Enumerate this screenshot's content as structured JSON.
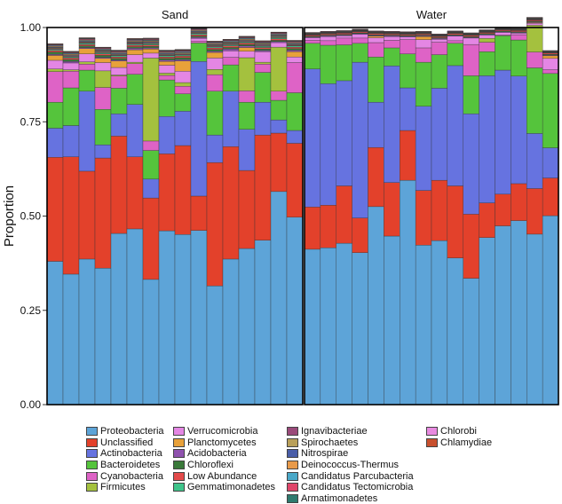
{
  "chart_data": {
    "type": "bar",
    "stacked": true,
    "ylabel": "Proportion",
    "xlabel": "",
    "ylim": [
      0,
      1
    ],
    "yticks": [
      "0.00",
      "0.25",
      "0.50",
      "0.75",
      "1.00"
    ],
    "panels": [
      "Sand",
      "Water"
    ],
    "series": [
      {
        "name": "Proteobacteria",
        "color": "#5da4d8",
        "sand": [
          0.38,
          0.346,
          0.386,
          0.362,
          0.454,
          0.466,
          0.332,
          0.461,
          0.451,
          0.462,
          0.315,
          0.386,
          0.414,
          0.436,
          0.565,
          0.497
        ],
        "water": [
          0.412,
          0.416,
          0.428,
          0.403,
          0.525,
          0.447,
          0.595,
          0.423,
          0.435,
          0.389,
          0.335,
          0.443,
          0.474,
          0.488,
          0.452,
          0.501
        ]
      },
      {
        "name": "Unclassified",
        "color": "#e3412b",
        "sand": [
          0.276,
          0.311,
          0.233,
          0.292,
          0.258,
          0.191,
          0.216,
          0.204,
          0.236,
          0.091,
          0.327,
          0.298,
          0.207,
          0.279,
          0.155,
          0.196
        ],
        "water": [
          0.112,
          0.113,
          0.152,
          0.092,
          0.157,
          0.142,
          0.132,
          0.145,
          0.16,
          0.191,
          0.17,
          0.092,
          0.084,
          0.098,
          0.121,
          0.1
        ]
      },
      {
        "name": "Actinobacteria",
        "color": "#6673e0",
        "sand": [
          0.077,
          0.083,
          0.212,
          0.035,
          0.059,
          0.139,
          0.05,
          0.099,
          0.091,
          0.357,
          0.073,
          0.147,
          0.109,
          0.087,
          0.035,
          0.034
        ],
        "water": [
          0.366,
          0.322,
          0.279,
          0.413,
          0.12,
          0.309,
          0.113,
          0.223,
          0.244,
          0.319,
          0.266,
          0.337,
          0.329,
          0.285,
          0.146,
          0.08
        ]
      },
      {
        "name": "Bacteroidetes",
        "color": "#55c43c",
        "sand": [
          0.069,
          0.1,
          0.056,
          0.094,
          0.068,
          0.08,
          0.076,
          0.097,
          0.046,
          0.049,
          0.116,
          0.07,
          0.072,
          0.079,
          0.052,
          0.1
        ],
        "water": [
          0.068,
          0.102,
          0.095,
          0.05,
          0.12,
          0.048,
          0.09,
          0.117,
          0.089,
          0.059,
          0.101,
          0.064,
          0.091,
          0.096,
          0.174,
          0.197
        ]
      },
      {
        "name": "Cyanobacteria",
        "color": "#de63c6",
        "sand": [
          0.081,
          0.044,
          0.016,
          0.058,
          0.032,
          0.028,
          0.025,
          0.012,
          0.02,
          0.005,
          0.044,
          0.02,
          0.03,
          0.022,
          0.024,
          0.08
        ],
        "water": [
          0.008,
          0.012,
          0.018,
          0.014,
          0.038,
          0.02,
          0.038,
          0.038,
          0.033,
          0.007,
          0.083,
          0.025,
          0.002,
          0.014,
          0.042,
          0.01
        ]
      },
      {
        "name": "Firmicutes",
        "color": "#a4c13e",
        "sand": [
          0.007,
          0.004,
          0.006,
          0.044,
          0.003,
          0.004,
          0.22,
          0.006,
          0.01,
          0.0,
          0.014,
          0.0,
          0.088,
          0.005,
          0.117,
          0.0
        ],
        "water": [
          0.0,
          0.0,
          0.0,
          0.0,
          0.0,
          0.0,
          0.0,
          0.0,
          0.0,
          0.0,
          0.0,
          0.01,
          0.0,
          0.0,
          0.071,
          0.0
        ]
      },
      {
        "name": "Verrucomicrobia",
        "color": "#e486e4",
        "sand": [
          0.023,
          0.018,
          0.021,
          0.022,
          0.02,
          0.02,
          0.013,
          0.021,
          0.03,
          0.007,
          0.03,
          0.017,
          0.017,
          0.028,
          0.012,
          0.015
        ],
        "water": [
          0.007,
          0.011,
          0.006,
          0.01,
          0.013,
          0.01,
          0.007,
          0.022,
          0.008,
          0.012,
          0.017,
          0.009,
          0.007,
          0.004,
          0.005,
          0.03
        ]
      },
      {
        "name": "Planctomycetes",
        "color": "#e8a13a",
        "sand": [
          0.013,
          0.0,
          0.014,
          0.011,
          0.017,
          0.013,
          0.011,
          0.01,
          0.027,
          0.0,
          0.015,
          0.0,
          0.01,
          0.0,
          0.0,
          0.014
        ],
        "water": [
          0.0,
          0.0,
          0.0,
          0.0,
          0.004,
          0.0,
          0.0,
          0.008,
          0.0,
          0.0,
          0.0,
          0.0,
          0.0,
          0.0,
          0.002,
          0.007
        ]
      },
      {
        "name": "Acidobacteria",
        "color": "#8f52ae",
        "sand": [
          0.003,
          0.004,
          0.003,
          0.003,
          0.003,
          0.004,
          0.003,
          0.004,
          0.004,
          0.003,
          0.003,
          0.005,
          0.004,
          0.003,
          0.003,
          0.004
        ],
        "water": [
          0.002,
          0.002,
          0.002,
          0.002,
          0.002,
          0.002,
          0.002,
          0.002,
          0.002,
          0.002,
          0.002,
          0.002,
          0.002,
          0.002,
          0.002,
          0.002
        ]
      },
      {
        "name": "Chloroflexi",
        "color": "#3a7a3a",
        "sand": [
          0.006,
          0.005,
          0.004,
          0.005,
          0.004,
          0.004,
          0.004,
          0.004,
          0.005,
          0.003,
          0.005,
          0.004,
          0.004,
          0.004,
          0.003,
          0.004
        ],
        "water": [
          0.002,
          0.002,
          0.002,
          0.002,
          0.002,
          0.002,
          0.002,
          0.002,
          0.002,
          0.002,
          0.002,
          0.002,
          0.002,
          0.002,
          0.002,
          0.002
        ]
      },
      {
        "name": "Low Abundance",
        "color": "#e34a4a",
        "sand": [
          0.004,
          0.004,
          0.004,
          0.004,
          0.004,
          0.004,
          0.004,
          0.004,
          0.004,
          0.004,
          0.004,
          0.004,
          0.004,
          0.004,
          0.004,
          0.004
        ],
        "water": [
          0.003,
          0.003,
          0.003,
          0.003,
          0.003,
          0.003,
          0.003,
          0.003,
          0.003,
          0.003,
          0.003,
          0.003,
          0.003,
          0.003,
          0.003,
          0.003
        ]
      },
      {
        "name": "Gemmatimonadetes",
        "color": "#3ec48a",
        "sand": [
          0.003,
          0.003,
          0.003,
          0.003,
          0.003,
          0.003,
          0.003,
          0.003,
          0.003,
          0.003,
          0.003,
          0.003,
          0.003,
          0.003,
          0.003,
          0.003
        ],
        "water": [
          0.001,
          0.001,
          0.001,
          0.001,
          0.001,
          0.001,
          0.001,
          0.001,
          0.001,
          0.001,
          0.001,
          0.001,
          0.001,
          0.001,
          0.001,
          0.001
        ]
      },
      {
        "name": "Ignavibacteriae",
        "color": "#9a4a7a",
        "sand": [
          0.002,
          0.002,
          0.002,
          0.002,
          0.002,
          0.002,
          0.002,
          0.002,
          0.002,
          0.002,
          0.002,
          0.002,
          0.002,
          0.002,
          0.002,
          0.002
        ],
        "water": [
          0.001,
          0.001,
          0.001,
          0.001,
          0.001,
          0.001,
          0.001,
          0.001,
          0.001,
          0.001,
          0.001,
          0.001,
          0.001,
          0.001,
          0.001,
          0.001
        ]
      },
      {
        "name": "Spirochaetes",
        "color": "#b9a05a",
        "sand": [
          0.002,
          0.002,
          0.002,
          0.002,
          0.002,
          0.002,
          0.002,
          0.002,
          0.002,
          0.002,
          0.002,
          0.002,
          0.002,
          0.002,
          0.002,
          0.002
        ],
        "water": [
          0.001,
          0.001,
          0.001,
          0.001,
          0.001,
          0.001,
          0.001,
          0.001,
          0.001,
          0.001,
          0.001,
          0.001,
          0.001,
          0.001,
          0.001,
          0.001
        ]
      },
      {
        "name": "Nitrospirae",
        "color": "#4a5ea8",
        "sand": [
          0.002,
          0.002,
          0.002,
          0.002,
          0.002,
          0.002,
          0.002,
          0.002,
          0.002,
          0.002,
          0.002,
          0.002,
          0.002,
          0.002,
          0.002,
          0.002
        ],
        "water": [
          0.001,
          0.001,
          0.001,
          0.001,
          0.001,
          0.001,
          0.001,
          0.001,
          0.001,
          0.001,
          0.001,
          0.001,
          0.001,
          0.001,
          0.001,
          0.001
        ]
      },
      {
        "name": "Deinococcus-Thermus",
        "color": "#e89a4a",
        "sand": [
          0.002,
          0.002,
          0.002,
          0.002,
          0.002,
          0.002,
          0.002,
          0.002,
          0.002,
          0.002,
          0.002,
          0.002,
          0.002,
          0.002,
          0.002,
          0.002
        ],
        "water": [
          0.001,
          0.001,
          0.001,
          0.001,
          0.001,
          0.001,
          0.001,
          0.001,
          0.001,
          0.001,
          0.001,
          0.001,
          0.001,
          0.001,
          0.001,
          0.001
        ]
      },
      {
        "name": "Candidatus Parcubacteria",
        "color": "#4aa8c8",
        "sand": [
          0.002,
          0.002,
          0.002,
          0.002,
          0.002,
          0.002,
          0.002,
          0.002,
          0.002,
          0.002,
          0.002,
          0.002,
          0.002,
          0.002,
          0.002,
          0.002
        ],
        "water": [
          0.001,
          0.001,
          0.001,
          0.001,
          0.001,
          0.001,
          0.001,
          0.001,
          0.001,
          0.001,
          0.001,
          0.001,
          0.001,
          0.001,
          0.001,
          0.001
        ]
      },
      {
        "name": "Candidatus Tectomicrobia",
        "color": "#e0466a",
        "sand": [
          0.002,
          0.002,
          0.002,
          0.002,
          0.002,
          0.002,
          0.002,
          0.002,
          0.002,
          0.002,
          0.002,
          0.002,
          0.002,
          0.002,
          0.002,
          0.002
        ],
        "water": [
          0.001,
          0.001,
          0.001,
          0.001,
          0.001,
          0.001,
          0.001,
          0.001,
          0.001,
          0.001,
          0.001,
          0.001,
          0.001,
          0.001,
          0.001,
          0.001
        ]
      },
      {
        "name": "Armatimonadetes",
        "color": "#2e7a6e",
        "sand": [
          0.001,
          0.001,
          0.001,
          0.001,
          0.001,
          0.001,
          0.001,
          0.001,
          0.001,
          0.001,
          0.001,
          0.001,
          0.001,
          0.001,
          0.001,
          0.001
        ],
        "water": [
          0.0,
          0.0,
          0.0,
          0.0,
          0.0,
          0.0,
          0.0,
          0.0,
          0.0,
          0.0,
          0.0,
          0.0,
          0.0,
          0.0,
          0.0,
          0.0
        ]
      },
      {
        "name": "Chlorobi",
        "color": "#e88ae0",
        "sand": [
          0.001,
          0.001,
          0.001,
          0.001,
          0.001,
          0.001,
          0.001,
          0.001,
          0.001,
          0.001,
          0.001,
          0.001,
          0.001,
          0.001,
          0.001,
          0.001
        ],
        "water": [
          0.0,
          0.0,
          0.0,
          0.0,
          0.0,
          0.0,
          0.0,
          0.0,
          0.0,
          0.0,
          0.0,
          0.0,
          0.0,
          0.0,
          0.0,
          0.0
        ]
      },
      {
        "name": "Chlamydiae",
        "color": "#c8502e",
        "sand": [
          0.001,
          0.001,
          0.001,
          0.001,
          0.001,
          0.001,
          0.001,
          0.001,
          0.001,
          0.001,
          0.001,
          0.001,
          0.001,
          0.001,
          0.001,
          0.001
        ],
        "water": [
          0.0,
          0.0,
          0.0,
          0.0,
          0.0,
          0.0,
          0.0,
          0.0,
          0.0,
          0.0,
          0.0,
          0.0,
          0.0,
          0.0,
          0.0,
          0.0
        ]
      }
    ],
    "legend_placement": "bottom",
    "grid": false
  }
}
